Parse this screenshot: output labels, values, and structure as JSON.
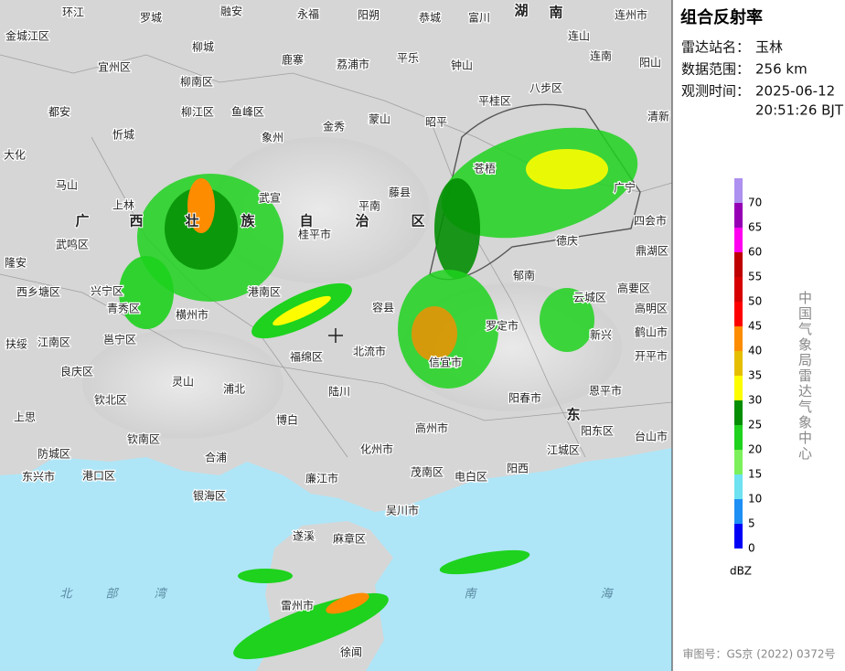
{
  "panel": {
    "title": "组合反射率",
    "station_label": "雷达站名：",
    "station": "玉林",
    "range_label": "数据范围：",
    "range": "256 km",
    "time_label": "观测时间：",
    "date": "2025-06-12",
    "time": "20:51:26 BJT",
    "source": "中国气象局雷达气象中心",
    "review": "审图号：GS京 (2022) 0372号"
  },
  "legend": {
    "unit": "dBZ",
    "levels": [
      {
        "value": 0,
        "color": "#0000f6"
      },
      {
        "value": 5,
        "color": "#1e8ff5"
      },
      {
        "value": 10,
        "color": "#6ee2f0"
      },
      {
        "value": 15,
        "color": "#7cf05a"
      },
      {
        "value": 20,
        "color": "#1ed21e"
      },
      {
        "value": 25,
        "color": "#048e04"
      },
      {
        "value": 30,
        "color": "#fdfd00"
      },
      {
        "value": 35,
        "color": "#e5be00"
      },
      {
        "value": 40,
        "color": "#fd8c00"
      },
      {
        "value": 45,
        "color": "#fd0000"
      },
      {
        "value": 50,
        "color": "#d60000"
      },
      {
        "value": 55,
        "color": "#be0000"
      },
      {
        "value": 60,
        "color": "#ff00f0"
      },
      {
        "value": 65,
        "color": "#9600b4"
      },
      {
        "value": 70,
        "color": "#ad90f0"
      }
    ]
  },
  "places": [
    "环江",
    "罗城",
    "融安",
    "永福",
    "阳朔",
    "恭城",
    "富川",
    "连州市",
    "金城江区",
    "柳城",
    "宜州区",
    "鹿寨",
    "荔浦市",
    "平乐",
    "钟山",
    "连山",
    "连南",
    "阳山",
    "柳南区",
    "八步区",
    "平桂区",
    "都安",
    "柳江区",
    "鱼峰区",
    "象州",
    "金秀",
    "蒙山",
    "昭平",
    "清新",
    "忻城",
    "大化",
    "马山",
    "上林",
    "苍梧",
    "武宣",
    "平南",
    "藤县",
    "广宁",
    "四会市",
    "桂平市",
    "武鸣区",
    "隆安",
    "德庆",
    "鼎湖区",
    "兴宁区",
    "西乡塘区",
    "港南区",
    "郁南",
    "高要区",
    "云城区",
    "青秀区",
    "容县",
    "高明区",
    "江南区",
    "邕宁区",
    "横州市",
    "北流市",
    "罗定市",
    "新兴",
    "鹤山市",
    "开平市",
    "扶绥",
    "福绵区",
    "良庆区",
    "灵山",
    "浦北",
    "陆川",
    "信宜市",
    "阳春市",
    "恩平市",
    "钦北区",
    "上思",
    "博白",
    "高州市",
    "阳东区",
    "台山市",
    "钦南区",
    "化州市",
    "防城区",
    "合浦",
    "江城区",
    "东兴市",
    "港口区",
    "廉江市",
    "茂南区",
    "电白区",
    "阳西",
    "银海区",
    "吴川市",
    "遂溪",
    "麻章区",
    "雷州市",
    "徐闻"
  ],
  "regions": [
    "湖",
    "南",
    "广",
    "西",
    "壮",
    "族",
    "自",
    "治",
    "区",
    "东",
    "北",
    "部",
    "湾",
    "南",
    "海"
  ]
}
